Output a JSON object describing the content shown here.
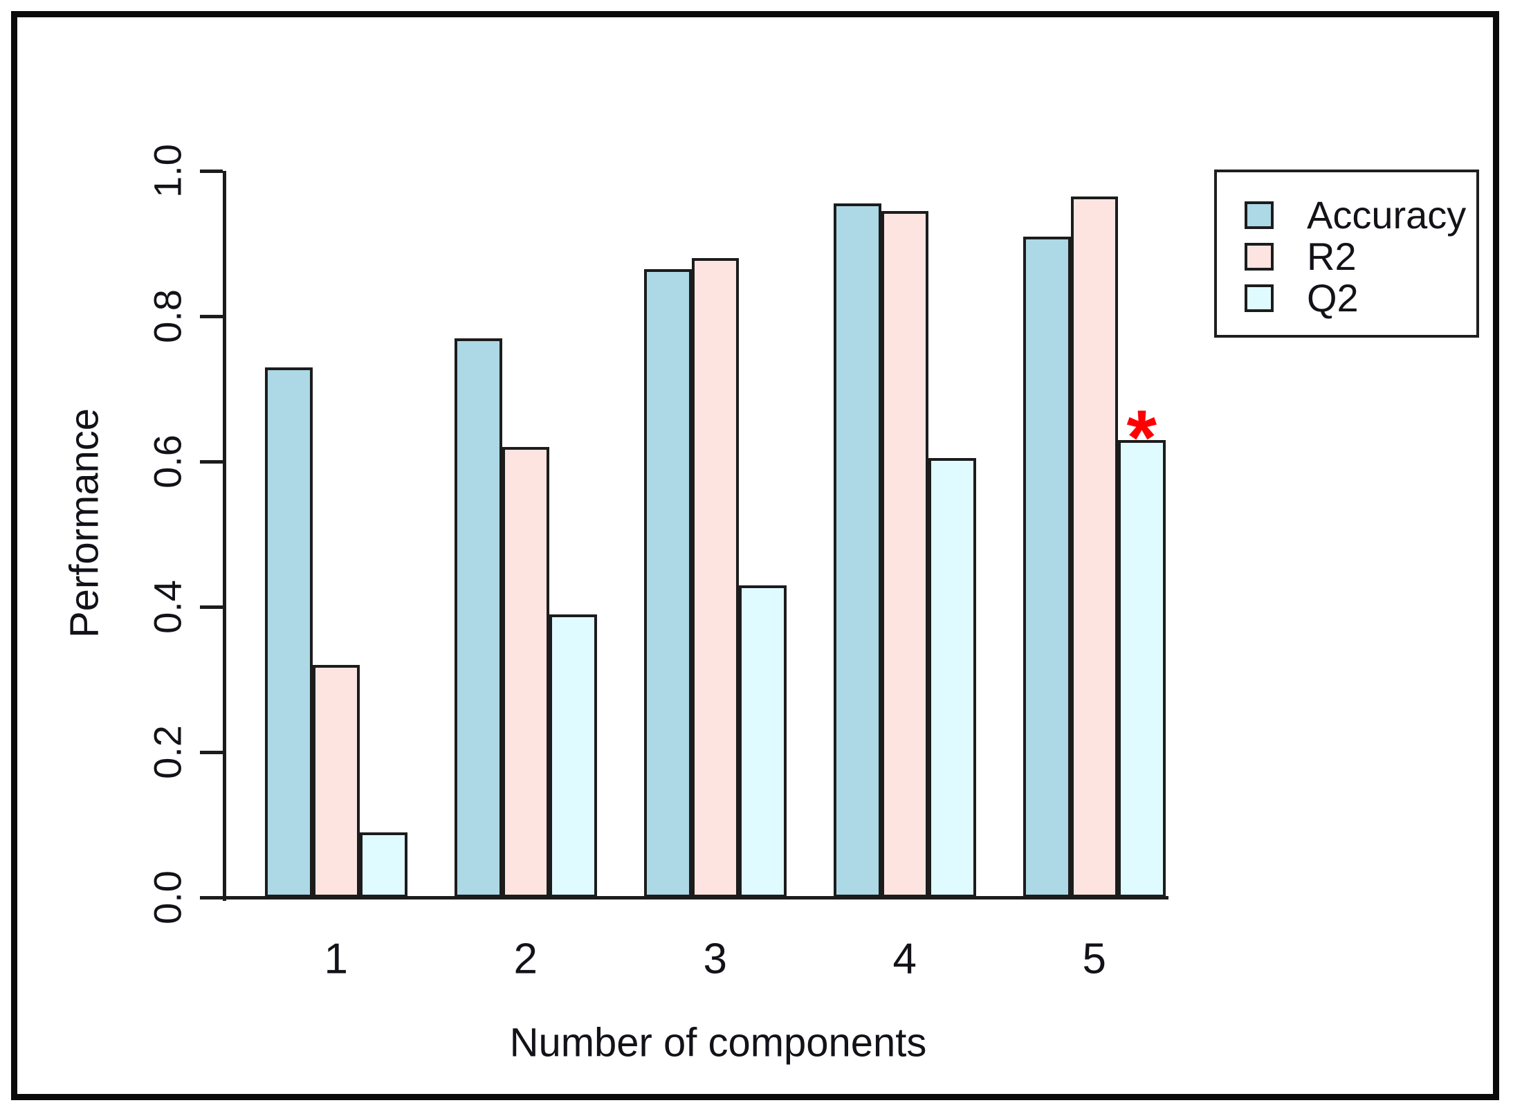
{
  "chart_data": {
    "type": "bar",
    "title": "",
    "xlabel": "Number of components",
    "ylabel": "Performance",
    "categories": [
      "1",
      "2",
      "3",
      "4",
      "5"
    ],
    "series": [
      {
        "name": "Accuracy",
        "color": "#ADD8E6",
        "values": [
          0.73,
          0.77,
          0.865,
          0.955,
          0.91
        ]
      },
      {
        "name": "R2",
        "color": "#FDE4E1",
        "values": [
          0.32,
          0.62,
          0.88,
          0.945,
          0.965
        ]
      },
      {
        "name": "Q2",
        "color": "#E0FBFF",
        "values": [
          0.09,
          0.39,
          0.43,
          0.605,
          0.63
        ]
      }
    ],
    "ylim": [
      0.0,
      1.0
    ],
    "yticks": [
      "0.0",
      "0.2",
      "0.4",
      "0.6",
      "0.8",
      "1.0"
    ],
    "grid": false,
    "legend_position": "top-right",
    "bar_border_color": "#1c1c1c",
    "annotation": {
      "text": "*",
      "color": "#FF0000",
      "series": "Q2",
      "category": "5",
      "description": "red asterisk above Q2 bar at 5 components"
    }
  }
}
